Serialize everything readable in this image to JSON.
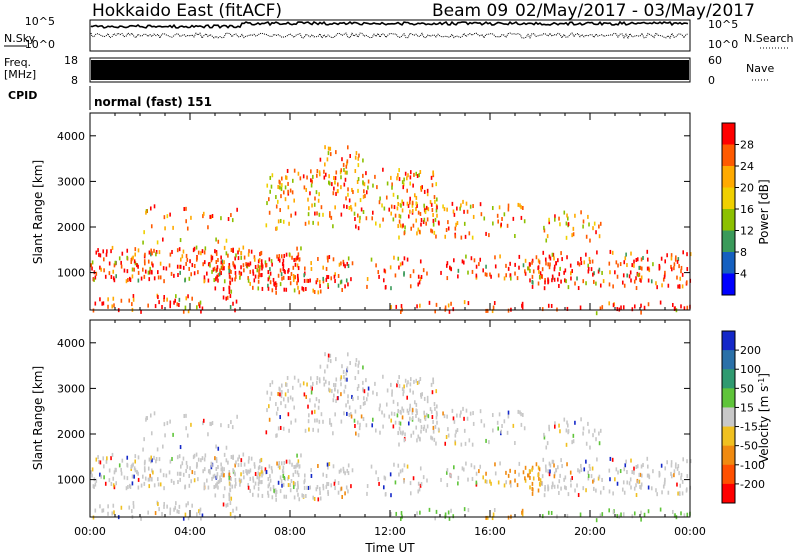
{
  "header": {
    "title": "Hokkaido East (fitACF)",
    "beam_label": "Beam 09",
    "date_range": "02/May/2017 - 03/May/2017"
  },
  "noise_panel": {
    "left_label": "N.Sky",
    "right_label": "N.Search",
    "left_ticks": [
      "10^5",
      "10^0"
    ],
    "right_ticks": [
      "10^5",
      "10^0"
    ]
  },
  "freq_panel": {
    "left_label_1": "Freq.",
    "left_label_2": "[MHz]",
    "right_label": "Nave",
    "left_ticks": [
      "18",
      "8"
    ],
    "right_ticks": [
      "60",
      "0"
    ]
  },
  "cpid_panel": {
    "label": "CPID",
    "value": "normal (fast) 151"
  },
  "chart_data": [
    {
      "type": "heatmap",
      "title": "",
      "ylabel": "Slant Range [km]",
      "xlabel": "",
      "parameter": "Power",
      "colorbar_label": "Power [dB]",
      "colorbar_ticks": [
        "28",
        "24",
        "20",
        "16",
        "12",
        "8",
        "4"
      ],
      "colorbar_colors": [
        "#ff0000",
        "#ff5a00",
        "#ffaa00",
        "#f0d000",
        "#8cc000",
        "#3a9a5a",
        "#1560c0",
        "#0000ff"
      ],
      "y_ticks": [
        "4000",
        "3000",
        "2000",
        "1000"
      ],
      "ylim": [
        180,
        4500
      ],
      "xlim": [
        0,
        24
      ]
    },
    {
      "type": "heatmap",
      "title": "",
      "ylabel": "Slant Range [km]",
      "xlabel": "Time UT",
      "parameter": "Velocity",
      "colorbar_label": "Velocity [m s^-1]",
      "colorbar_ticks": [
        "200",
        "100",
        "50",
        "15",
        "-15",
        "-50",
        "-100",
        "-200"
      ],
      "colorbar_colors": [
        "#1428c8",
        "#2a70a8",
        "#2f9a70",
        "#5fc43a",
        "#c8c8c8",
        "#f0c020",
        "#f08a10",
        "#ff5000",
        "#ff0000"
      ],
      "y_ticks": [
        "4000",
        "3000",
        "2000",
        "1000"
      ],
      "x_ticks": [
        "00:00",
        "04:00",
        "08:00",
        "12:00",
        "16:00",
        "20:00",
        "00:00"
      ],
      "ylim": [
        180,
        4500
      ],
      "xlim": [
        0,
        24
      ]
    }
  ]
}
